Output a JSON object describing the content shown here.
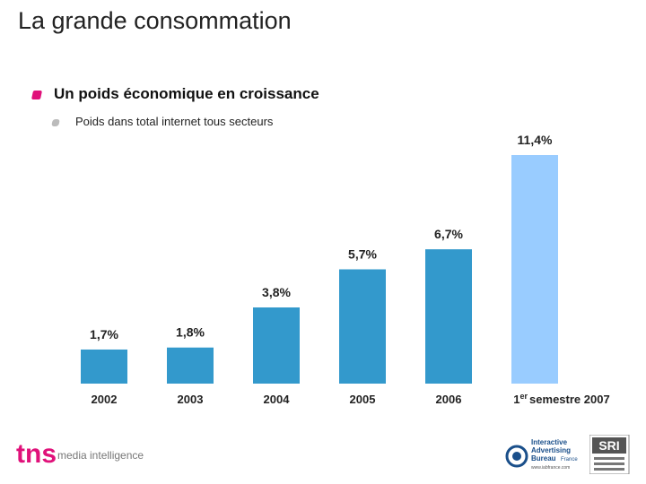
{
  "page": {
    "title": "La grande consommation",
    "heading": "Un poids économique en croissance",
    "subheading": "Poids dans total internet tous secteurs"
  },
  "chart_data": {
    "type": "bar",
    "title": "Un poids économique en croissance",
    "subtitle": "Poids dans total internet tous secteurs",
    "categories": [
      "2002",
      "2003",
      "2004",
      "2005",
      "2006",
      "1er semestre 2007"
    ],
    "values": [
      1.7,
      1.8,
      3.8,
      5.7,
      6.7,
      11.4
    ],
    "labels": [
      "1,7%",
      "1,8%",
      "3,8%",
      "5,7%",
      "6,7%",
      "11,4%"
    ],
    "unit": "%",
    "ylim": [
      0,
      11.4
    ],
    "grid": false,
    "colors": {
      "bar": "#3399cc",
      "highlight": "#99ccff"
    },
    "xlabel": "",
    "ylabel": ""
  },
  "footer": {
    "tns_text": "tns",
    "tns_sub": "media intelligence",
    "iab_lines": [
      "Interactive",
      "Advertising",
      "Bureau"
    ],
    "iab_country": "France",
    "iab_url": "www.iabfrance.com",
    "sri_text": "SRI",
    "colors": {
      "tns": "#e0117a",
      "iab": "#1a4f8a"
    }
  }
}
